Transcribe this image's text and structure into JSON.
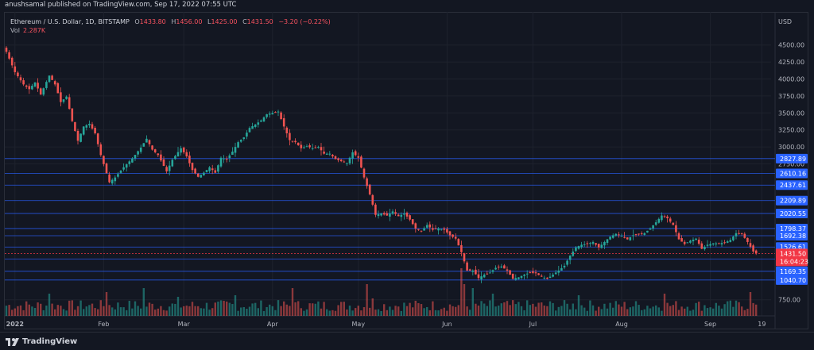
{
  "header": {
    "published_line": "anushsamal published on TradingView.com, Sep 17, 2022 07:55 UTC"
  },
  "legend": {
    "symbol": "Ethereum / U.S. Dollar, 1D, BITSTAMP",
    "open_label": "O",
    "open_value": "1433.80",
    "high_label": "H",
    "high_value": "1456.00",
    "low_label": "L",
    "low_value": "1425.00",
    "close_label": "C",
    "close_value": "1431.50",
    "change": "−3.20 (−0.22%)",
    "vol_label": "Vol",
    "vol_value": "2.287K"
  },
  "footer": {
    "brand": "TradingView",
    "logo_icon": "tradingview-logo-icon"
  },
  "colors": {
    "background": "#131722",
    "bull": "#26a69a",
    "bear": "#ef5350",
    "line_blue": "#2962ff",
    "label_blue": "#2962ff",
    "label_red": "#f23645",
    "grid": "#1e222d",
    "text": "#b2b5be"
  },
  "chart_data": {
    "type": "candlestick",
    "currency": "USD",
    "y_ticks": [
      "750.00",
      "4500.00",
      "4250.00",
      "4000.00",
      "3750.00",
      "3500.00",
      "3250.00",
      "3000.00",
      "2750.00"
    ],
    "y_tick_values": [
      750,
      4500,
      4250,
      4000,
      3750,
      3500,
      3250,
      3000,
      2750
    ],
    "x_ticks": [
      "2022",
      "Feb",
      "Mar",
      "Apr",
      "May",
      "Jun",
      "Jul",
      "Aug",
      "Sep",
      "19"
    ],
    "x_tick_days": [
      3,
      34,
      62,
      93,
      123,
      154,
      184,
      215,
      246,
      264
    ],
    "horizontal_levels": [
      2827.89,
      2610.16,
      2437.61,
      2209.89,
      2020.55,
      1798.37,
      1692.38,
      1526.61,
      1350.84,
      1169.35,
      1040.7
    ],
    "level_labels": [
      "2827.89",
      "2610.16",
      "2437.61",
      "2209.89",
      "2020.55",
      "1798.37",
      "1692.38",
      "1526.61",
      "1350.84",
      "1169.35",
      "1040.70"
    ],
    "last_price": {
      "price": "1431.50",
      "countdown": "16:04:23"
    },
    "price_anchors": [
      [
        0,
        4400
      ],
      [
        3,
        4100
      ],
      [
        6,
        3920
      ],
      [
        8,
        3850
      ],
      [
        10,
        3950
      ],
      [
        12,
        3770
      ],
      [
        15,
        4050
      ],
      [
        17,
        3920
      ],
      [
        19,
        3660
      ],
      [
        21,
        3740
      ],
      [
        23,
        3380
      ],
      [
        25,
        3090
      ],
      [
        27,
        3300
      ],
      [
        29,
        3340
      ],
      [
        31,
        3200
      ],
      [
        33,
        2880
      ],
      [
        36,
        2480
      ],
      [
        38,
        2550
      ],
      [
        41,
        2700
      ],
      [
        44,
        2830
      ],
      [
        47,
        2990
      ],
      [
        49,
        3120
      ],
      [
        51,
        2960
      ],
      [
        53,
        2880
      ],
      [
        56,
        2640
      ],
      [
        58,
        2810
      ],
      [
        61,
        2980
      ],
      [
        63,
        2860
      ],
      [
        65,
        2660
      ],
      [
        67,
        2560
      ],
      [
        69,
        2620
      ],
      [
        71,
        2700
      ],
      [
        73,
        2620
      ],
      [
        75,
        2840
      ],
      [
        77,
        2820
      ],
      [
        79,
        2930
      ],
      [
        81,
        3070
      ],
      [
        83,
        3140
      ],
      [
        85,
        3280
      ],
      [
        87,
        3330
      ],
      [
        89,
        3390
      ],
      [
        91,
        3480
      ],
      [
        93,
        3500
      ],
      [
        95,
        3520
      ],
      [
        97,
        3300
      ],
      [
        99,
        3100
      ],
      [
        101,
        3070
      ],
      [
        103,
        2980
      ],
      [
        105,
        3010
      ],
      [
        107,
        2980
      ],
      [
        109,
        3000
      ],
      [
        111,
        2900
      ],
      [
        113,
        2900
      ],
      [
        115,
        2820
      ],
      [
        117,
        2790
      ],
      [
        119,
        2760
      ],
      [
        121,
        2920
      ],
      [
        123,
        2840
      ],
      [
        125,
        2550
      ],
      [
        127,
        2300
      ],
      [
        129,
        2000
      ],
      [
        131,
        2020
      ],
      [
        133,
        1990
      ],
      [
        135,
        2050
      ],
      [
        137,
        1980
      ],
      [
        139,
        2020
      ],
      [
        141,
        1930
      ],
      [
        143,
        1800
      ],
      [
        145,
        1760
      ],
      [
        147,
        1850
      ],
      [
        149,
        1780
      ],
      [
        151,
        1800
      ],
      [
        153,
        1780
      ],
      [
        155,
        1700
      ],
      [
        157,
        1650
      ],
      [
        159,
        1450
      ],
      [
        161,
        1180
      ],
      [
        163,
        1180
      ],
      [
        165,
        1070
      ],
      [
        167,
        1120
      ],
      [
        169,
        1150
      ],
      [
        171,
        1220
      ],
      [
        173,
        1240
      ],
      [
        175,
        1180
      ],
      [
        177,
        1060
      ],
      [
        179,
        1080
      ],
      [
        181,
        1120
      ],
      [
        183,
        1150
      ],
      [
        185,
        1140
      ],
      [
        187,
        1090
      ],
      [
        189,
        1060
      ],
      [
        191,
        1120
      ],
      [
        193,
        1180
      ],
      [
        195,
        1250
      ],
      [
        197,
        1400
      ],
      [
        199,
        1520
      ],
      [
        201,
        1560
      ],
      [
        203,
        1570
      ],
      [
        205,
        1600
      ],
      [
        207,
        1520
      ],
      [
        209,
        1600
      ],
      [
        211,
        1680
      ],
      [
        213,
        1720
      ],
      [
        215,
        1690
      ],
      [
        217,
        1640
      ],
      [
        219,
        1700
      ],
      [
        221,
        1720
      ],
      [
        223,
        1730
      ],
      [
        225,
        1800
      ],
      [
        227,
        1890
      ],
      [
        229,
        1990
      ],
      [
        231,
        1950
      ],
      [
        233,
        1850
      ],
      [
        235,
        1640
      ],
      [
        237,
        1570
      ],
      [
        239,
        1620
      ],
      [
        241,
        1650
      ],
      [
        243,
        1500
      ],
      [
        245,
        1560
      ],
      [
        247,
        1580
      ],
      [
        249,
        1580
      ],
      [
        251,
        1590
      ],
      [
        253,
        1630
      ],
      [
        255,
        1730
      ],
      [
        257,
        1720
      ],
      [
        259,
        1600
      ],
      [
        261,
        1460
      ],
      [
        262,
        1431.5
      ]
    ],
    "volume_peaks": [
      [
        15,
        28
      ],
      [
        35,
        30
      ],
      [
        48,
        35
      ],
      [
        60,
        24
      ],
      [
        80,
        26
      ],
      [
        100,
        35
      ],
      [
        126,
        40
      ],
      [
        128,
        22
      ],
      [
        159,
        60
      ],
      [
        160,
        40
      ],
      [
        163,
        35
      ],
      [
        170,
        28
      ],
      [
        200,
        26
      ],
      [
        230,
        28
      ],
      [
        260,
        30
      ]
    ]
  }
}
